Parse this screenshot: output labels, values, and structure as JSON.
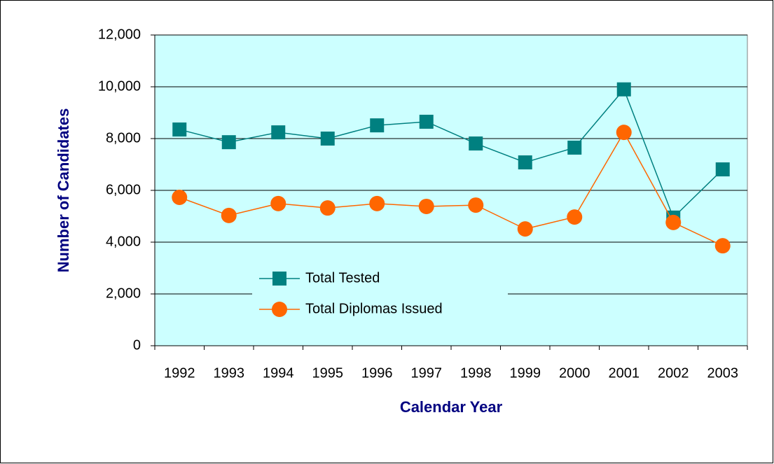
{
  "chart_data": {
    "type": "line",
    "x_label": "Calendar Year",
    "y_label": "Number of Candidates",
    "categories": [
      "1992",
      "1993",
      "1994",
      "1995",
      "1996",
      "1997",
      "1998",
      "1999",
      "2000",
      "2001",
      "2002",
      "2003"
    ],
    "series": [
      {
        "name": "Total Tested",
        "color": "#008080",
        "marker": "square",
        "values": [
          8350,
          7860,
          8240,
          8000,
          8510,
          8650,
          7810,
          7080,
          7650,
          9900,
          4950,
          6810
        ]
      },
      {
        "name": "Total Diplomas Issued",
        "color": "#ff6600",
        "marker": "circle",
        "values": [
          5730,
          5030,
          5490,
          5320,
          5490,
          5380,
          5430,
          4510,
          4970,
          8240,
          4760,
          3860
        ]
      }
    ],
    "ylim": [
      0,
      12000
    ],
    "yticks": [
      0,
      {
        "value": 2000,
        "label": "2,000"
      },
      {
        "value": 4000,
        "label": "4,000"
      },
      {
        "value": 6000,
        "label": "6,000"
      },
      {
        "value": 8000,
        "label": "8,000"
      },
      {
        "value": 10000,
        "label": "10,000"
      },
      {
        "value": 12000,
        "label": "12,000"
      }
    ],
    "grid": true,
    "plot_background": "#ccffff",
    "legend": "inside"
  }
}
